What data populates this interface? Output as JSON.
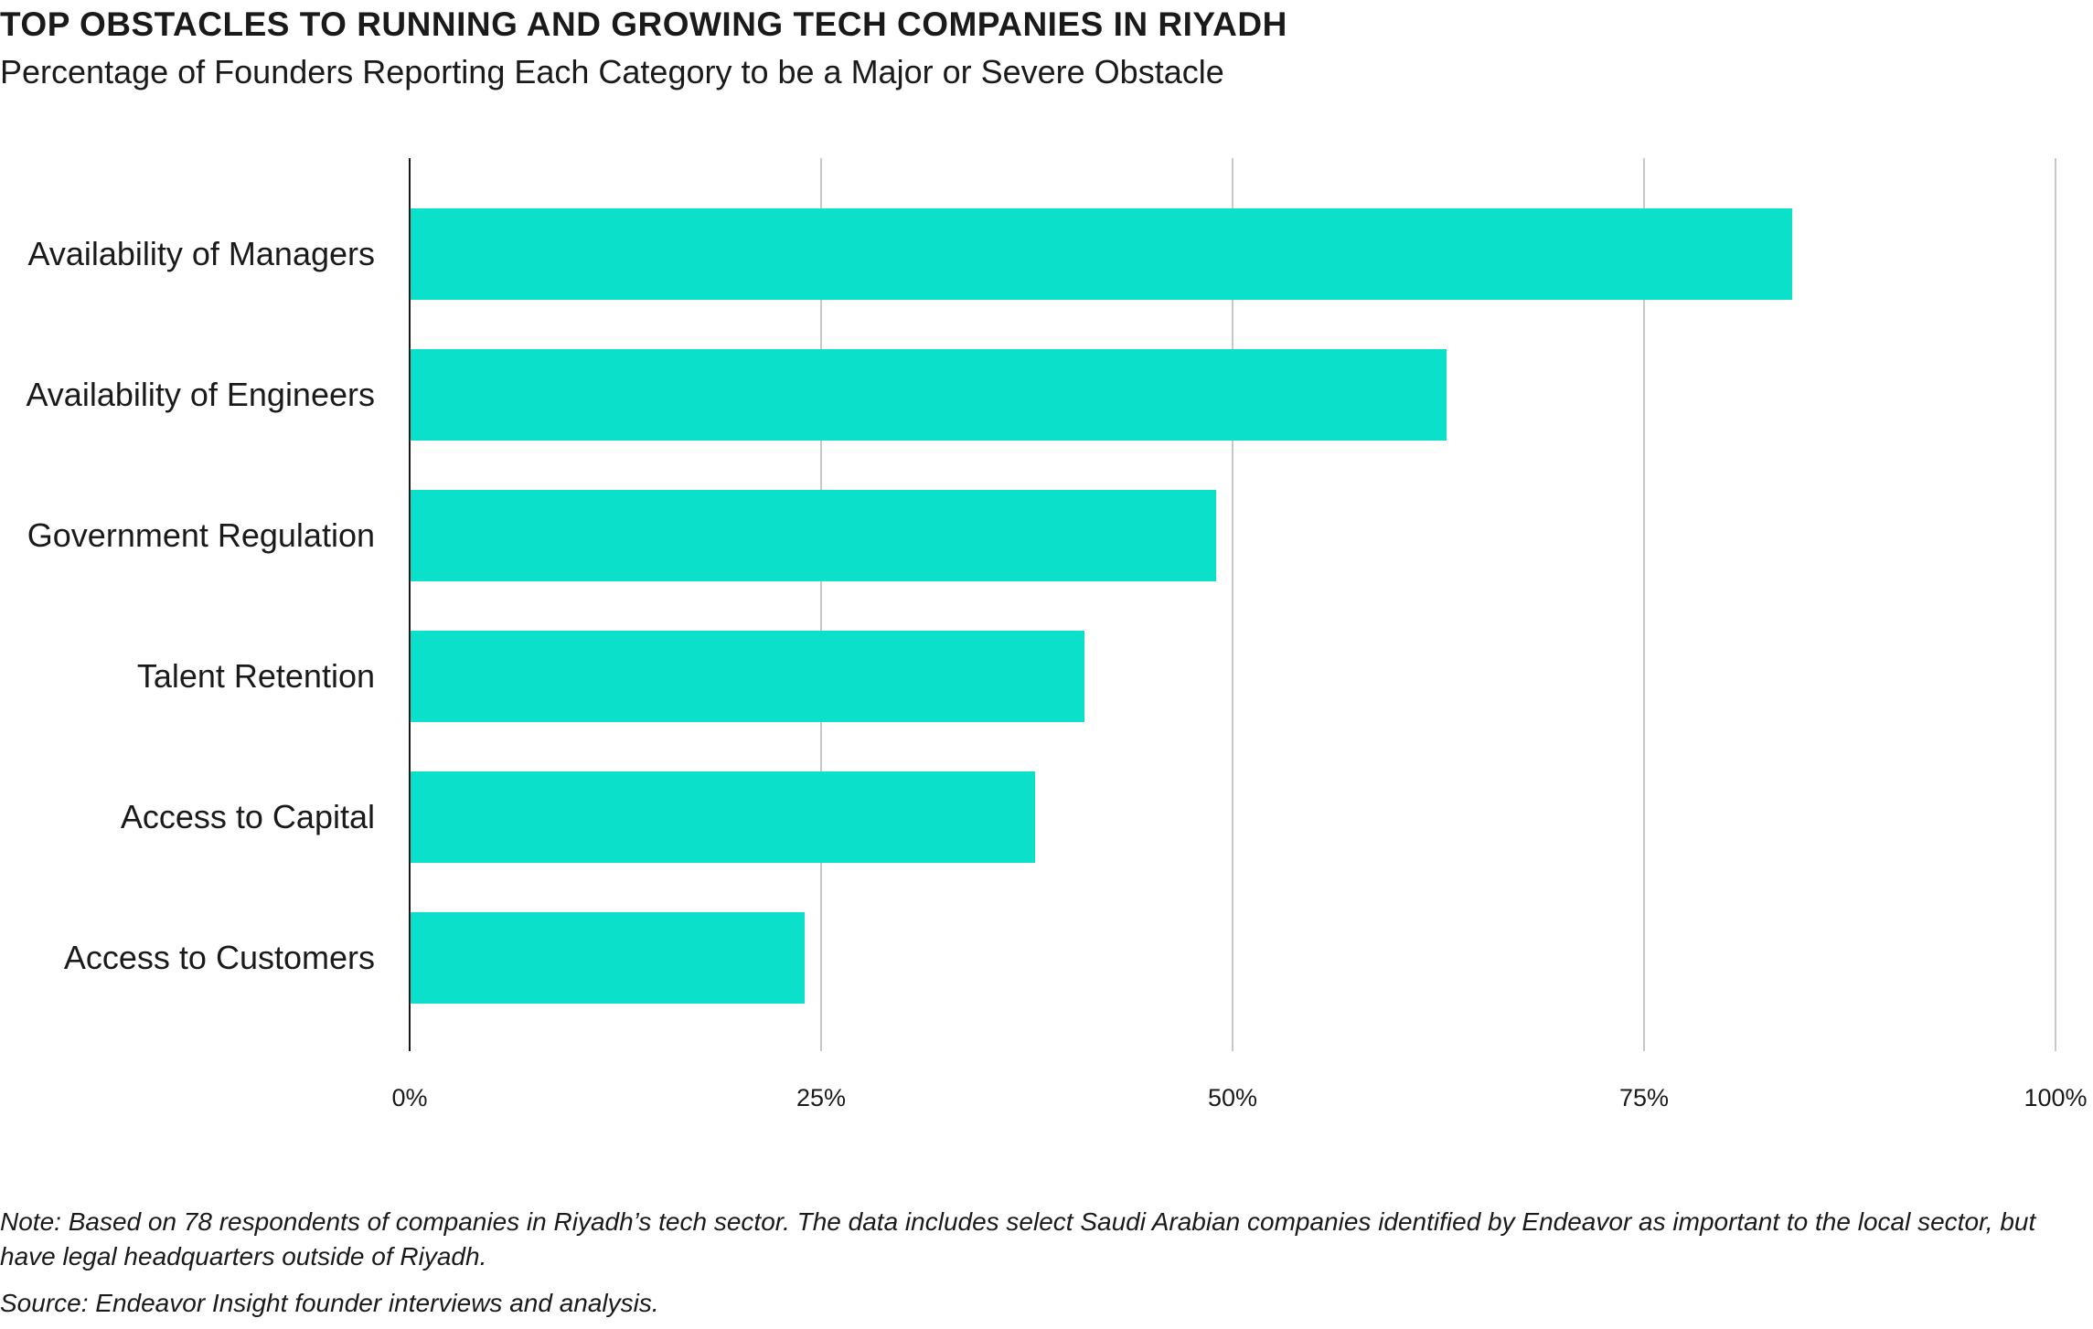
{
  "chart_data": {
    "type": "bar",
    "orientation": "horizontal",
    "title": "TOP OBSTACLES TO RUNNING AND GROWING TECH COMPANIES IN RIYADH",
    "subtitle": "Percentage of Founders Reporting Each Category to be a Major or Severe Obstacle",
    "categories": [
      "Availability of Managers",
      "Availability of Engineers",
      "Government Regulation",
      "Talent Retention",
      "Access to Capital",
      "Access to Customers"
    ],
    "values": [
      84,
      63,
      49,
      41,
      38,
      24
    ],
    "xlim": [
      0,
      100
    ],
    "xticks": [
      0,
      25,
      50,
      75,
      100
    ],
    "xtick_labels": [
      "0%",
      "25%",
      "50%",
      "75%",
      "100%"
    ],
    "grid": true,
    "bar_color": "#0be0cb",
    "grid_color": "#c8c8c8",
    "axis_color": "#1a1a1a"
  },
  "footnotes": {
    "note": "Note: Based on 78 respondents of companies in Riyadh’s tech sector. The data includes select Saudi Arabian companies identified by Endeavor as important to the local sector, but have legal headquarters outside of Riyadh.",
    "source": "Source: Endeavor Insight founder interviews and analysis."
  }
}
